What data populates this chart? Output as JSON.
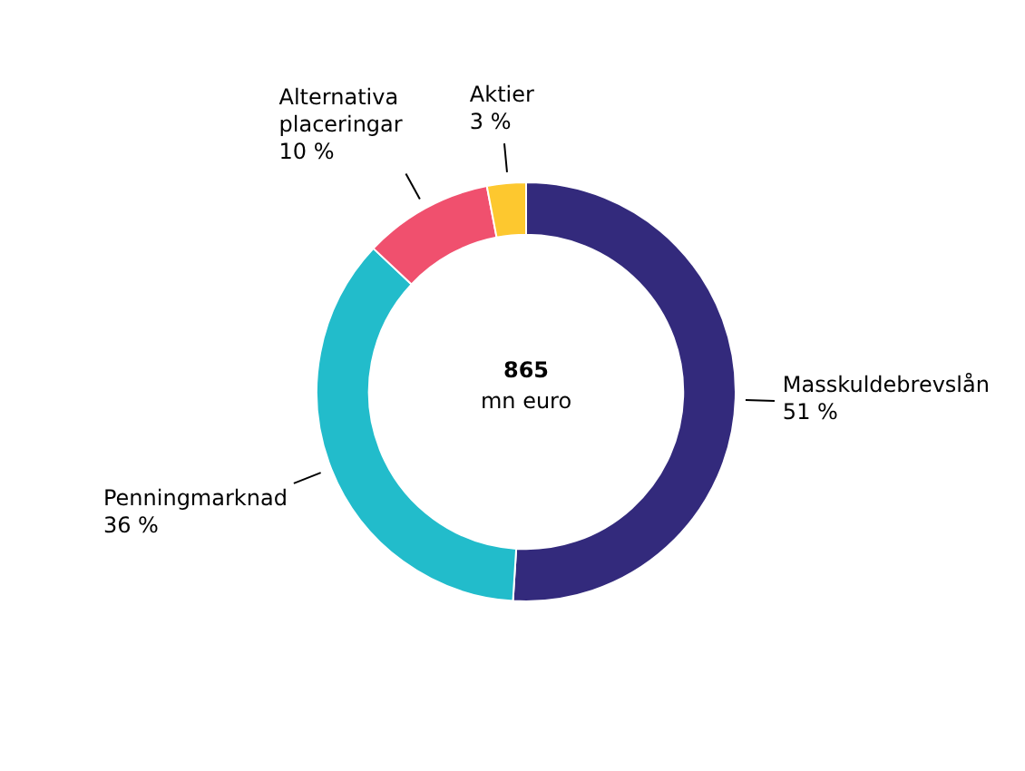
{
  "chart_data": {
    "type": "donut",
    "categories": [
      "Masskuldebrevslån",
      "Penningmarknad",
      "Alternativa placeringar",
      "Aktier"
    ],
    "values": [
      51,
      36,
      10,
      3
    ],
    "colors": [
      "#332a7c",
      "#22bccb",
      "#f0506e",
      "#fdc82f"
    ],
    "value_labels": [
      "51 %",
      "36 %",
      "10 %",
      "3 %"
    ],
    "annotations": [
      "865",
      "mn euro"
    ],
    "legend": false
  }
}
